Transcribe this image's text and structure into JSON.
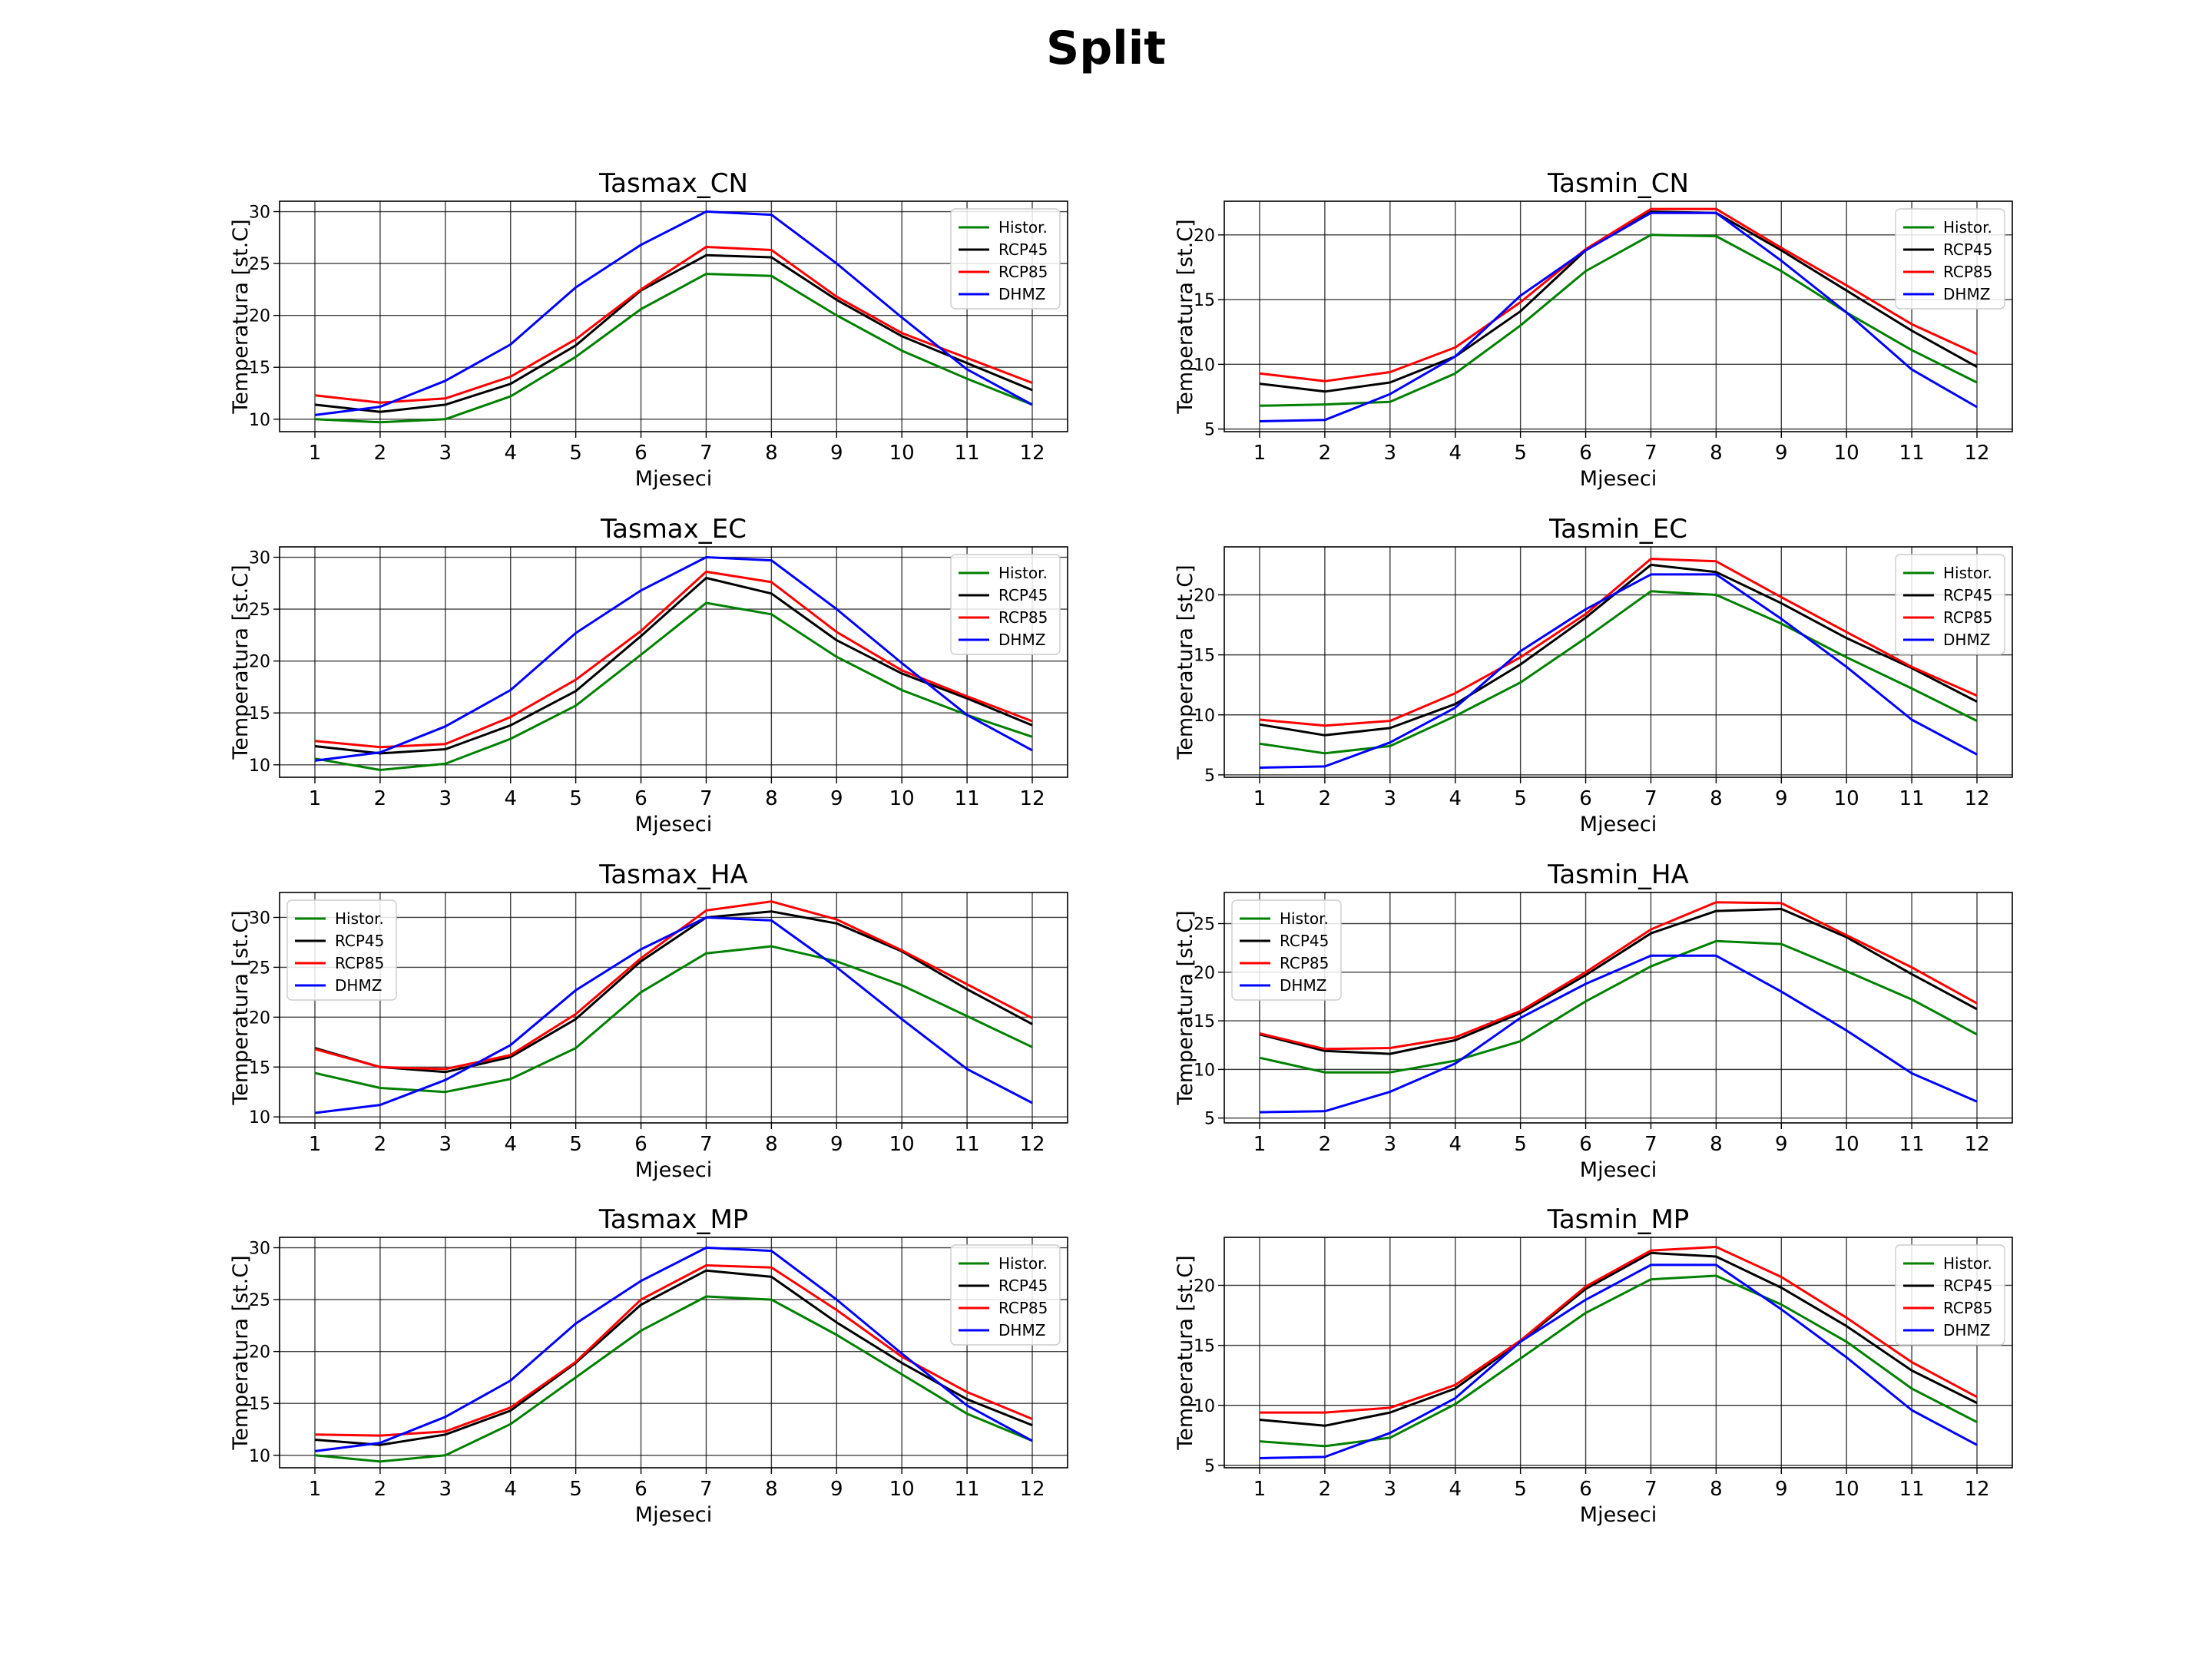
{
  "title": "Split",
  "colors": {
    "Histor.": "#008000",
    "RCP45": "#000000",
    "RCP85": "#ff0000",
    "DHMZ": "#0000ff"
  },
  "chart_data": [
    {
      "type": "line",
      "title": "Tasmax_CN",
      "xlabel": "Mjeseci",
      "ylabel": "Temperatura [st.C]",
      "x": [
        1,
        2,
        3,
        4,
        5,
        6,
        7,
        8,
        9,
        10,
        11,
        12
      ],
      "ylim": [
        8.8,
        31
      ],
      "yticks": [
        10,
        15,
        20,
        25,
        30
      ],
      "legend": "upper right",
      "grid": true,
      "series": [
        {
          "name": "Histor.",
          "values": [
            10.0,
            9.7,
            10.0,
            12.2,
            16.0,
            20.6,
            24.0,
            23.8,
            20.0,
            16.6,
            13.9,
            11.4
          ]
        },
        {
          "name": "RCP45",
          "values": [
            11.4,
            10.7,
            11.4,
            13.4,
            17.1,
            22.4,
            25.8,
            25.6,
            21.5,
            18.0,
            15.4,
            12.8
          ]
        },
        {
          "name": "RCP85",
          "values": [
            12.3,
            11.6,
            12.0,
            14.1,
            17.7,
            22.5,
            26.6,
            26.3,
            21.8,
            18.3,
            15.9,
            13.5
          ]
        },
        {
          "name": "DHMZ",
          "values": [
            10.4,
            11.2,
            13.7,
            17.2,
            22.7,
            26.8,
            30.0,
            29.7,
            25.0,
            19.8,
            14.8,
            11.4
          ]
        }
      ]
    },
    {
      "type": "line",
      "title": "Tasmin_CN",
      "xlabel": "Mjeseci",
      "ylabel": "Temperatura [st.C]",
      "x": [
        1,
        2,
        3,
        4,
        5,
        6,
        7,
        8,
        9,
        10,
        11,
        12
      ],
      "ylim": [
        4.8,
        22.6
      ],
      "yticks": [
        5,
        10,
        15,
        20
      ],
      "legend": "upper right",
      "grid": true,
      "series": [
        {
          "name": "Histor.",
          "values": [
            6.8,
            6.9,
            7.1,
            9.3,
            13.0,
            17.2,
            20.0,
            19.9,
            17.2,
            14.0,
            11.1,
            8.6
          ]
        },
        {
          "name": "RCP45",
          "values": [
            8.5,
            7.9,
            8.6,
            10.6,
            14.1,
            18.8,
            21.8,
            21.7,
            18.8,
            15.7,
            12.6,
            9.8
          ]
        },
        {
          "name": "RCP85",
          "values": [
            9.3,
            8.7,
            9.4,
            11.3,
            14.8,
            18.9,
            22.0,
            22.0,
            19.0,
            16.1,
            13.1,
            10.8
          ]
        },
        {
          "name": "DHMZ",
          "values": [
            5.6,
            5.7,
            7.7,
            10.6,
            15.3,
            18.8,
            21.7,
            21.7,
            18.0,
            14.0,
            9.6,
            6.7
          ]
        }
      ]
    },
    {
      "type": "line",
      "title": "Tasmax_EC",
      "xlabel": "Mjeseci",
      "ylabel": "Temperatura [st.C]",
      "x": [
        1,
        2,
        3,
        4,
        5,
        6,
        7,
        8,
        9,
        10,
        11,
        12
      ],
      "ylim": [
        8.8,
        31
      ],
      "yticks": [
        10,
        15,
        20,
        25,
        30
      ],
      "legend": "upper right",
      "grid": true,
      "series": [
        {
          "name": "Histor.",
          "values": [
            10.6,
            9.5,
            10.1,
            12.5,
            15.7,
            20.6,
            25.6,
            24.5,
            20.4,
            17.2,
            14.8,
            12.7
          ]
        },
        {
          "name": "RCP45",
          "values": [
            11.8,
            11.1,
            11.5,
            13.8,
            17.1,
            22.4,
            28.0,
            26.5,
            22.0,
            18.8,
            16.4,
            13.8
          ]
        },
        {
          "name": "RCP85",
          "values": [
            12.3,
            11.7,
            12.0,
            14.6,
            18.2,
            22.9,
            28.6,
            27.6,
            22.8,
            19.1,
            16.6,
            14.2
          ]
        },
        {
          "name": "DHMZ",
          "values": [
            10.4,
            11.2,
            13.7,
            17.2,
            22.7,
            26.8,
            30.0,
            29.7,
            25.0,
            19.8,
            14.8,
            11.4
          ]
        }
      ]
    },
    {
      "type": "line",
      "title": "Tasmin_EC",
      "xlabel": "Mjeseci",
      "ylabel": "Temperatura [st.C]",
      "x": [
        1,
        2,
        3,
        4,
        5,
        6,
        7,
        8,
        9,
        10,
        11,
        12
      ],
      "ylim": [
        4.8,
        24
      ],
      "yticks": [
        5,
        10,
        15,
        20
      ],
      "legend": "upper right",
      "grid": true,
      "series": [
        {
          "name": "Histor.",
          "values": [
            7.6,
            6.8,
            7.4,
            9.9,
            12.7,
            16.4,
            20.3,
            20.0,
            17.6,
            14.8,
            12.2,
            9.5
          ]
        },
        {
          "name": "RCP45",
          "values": [
            9.2,
            8.3,
            8.9,
            10.9,
            14.2,
            18.1,
            22.5,
            21.9,
            19.3,
            16.4,
            13.9,
            11.1
          ]
        },
        {
          "name": "RCP85",
          "values": [
            9.6,
            9.1,
            9.5,
            11.8,
            14.8,
            18.4,
            23.0,
            22.8,
            19.8,
            16.9,
            14.0,
            11.6
          ]
        },
        {
          "name": "DHMZ",
          "values": [
            5.6,
            5.7,
            7.7,
            10.6,
            15.3,
            18.8,
            21.7,
            21.7,
            18.0,
            14.0,
            9.6,
            6.7
          ]
        }
      ]
    },
    {
      "type": "line",
      "title": "Tasmax_HA",
      "xlabel": "Mjeseci",
      "ylabel": "Temperatura [st.C]",
      "x": [
        1,
        2,
        3,
        4,
        5,
        6,
        7,
        8,
        9,
        10,
        11,
        12
      ],
      "ylim": [
        9.4,
        32.5
      ],
      "yticks": [
        10,
        15,
        20,
        25,
        30
      ],
      "legend": "upper left",
      "grid": true,
      "series": [
        {
          "name": "Histor.",
          "values": [
            14.4,
            12.9,
            12.5,
            13.8,
            16.9,
            22.5,
            26.4,
            27.1,
            25.6,
            23.2,
            20.1,
            17.0
          ]
        },
        {
          "name": "RCP45",
          "values": [
            16.9,
            15.0,
            14.5,
            16.0,
            19.8,
            25.6,
            30.0,
            30.6,
            29.4,
            26.6,
            22.8,
            19.3
          ]
        },
        {
          "name": "RCP85",
          "values": [
            16.8,
            15.0,
            14.8,
            16.2,
            20.3,
            25.9,
            30.7,
            31.6,
            29.8,
            26.7,
            23.3,
            19.9
          ]
        },
        {
          "name": "DHMZ",
          "values": [
            10.4,
            11.2,
            13.7,
            17.2,
            22.7,
            26.8,
            30.0,
            29.7,
            25.0,
            19.8,
            14.8,
            11.4
          ]
        }
      ]
    },
    {
      "type": "line",
      "title": "Tasmin_HA",
      "xlabel": "Mjeseci",
      "ylabel": "Temperatura [st.C]",
      "x": [
        1,
        2,
        3,
        4,
        5,
        6,
        7,
        8,
        9,
        10,
        11,
        12
      ],
      "ylim": [
        4.5,
        28.2
      ],
      "yticks": [
        5,
        10,
        15,
        20,
        25
      ],
      "legend": "upper left",
      "grid": true,
      "series": [
        {
          "name": "Histor.",
          "values": [
            11.2,
            9.7,
            9.7,
            10.9,
            12.9,
            17.0,
            20.6,
            23.2,
            22.9,
            20.1,
            17.2,
            13.6
          ]
        },
        {
          "name": "RCP45",
          "values": [
            13.6,
            11.9,
            11.6,
            13.0,
            15.8,
            19.7,
            24.0,
            26.3,
            26.5,
            23.6,
            19.8,
            16.2
          ]
        },
        {
          "name": "RCP85",
          "values": [
            13.7,
            12.1,
            12.2,
            13.3,
            16.0,
            20.0,
            24.4,
            27.2,
            27.1,
            23.8,
            20.5,
            16.8
          ]
        },
        {
          "name": "DHMZ",
          "values": [
            5.6,
            5.7,
            7.7,
            10.6,
            15.3,
            18.8,
            21.7,
            21.7,
            18.0,
            14.0,
            9.6,
            6.7
          ]
        }
      ]
    },
    {
      "type": "line",
      "title": "Tasmax_MP",
      "xlabel": "Mjeseci",
      "ylabel": "Temperatura [st.C]",
      "x": [
        1,
        2,
        3,
        4,
        5,
        6,
        7,
        8,
        9,
        10,
        11,
        12
      ],
      "ylim": [
        8.8,
        31
      ],
      "yticks": [
        10,
        15,
        20,
        25,
        30
      ],
      "legend": "upper right",
      "grid": true,
      "series": [
        {
          "name": "Histor.",
          "values": [
            10.0,
            9.4,
            10.0,
            13.0,
            17.5,
            22.0,
            25.3,
            25.0,
            21.6,
            17.8,
            14.0,
            11.4
          ]
        },
        {
          "name": "RCP45",
          "values": [
            11.5,
            11.0,
            12.0,
            14.3,
            18.9,
            24.5,
            27.8,
            27.2,
            22.8,
            18.9,
            15.4,
            12.9
          ]
        },
        {
          "name": "RCP85",
          "values": [
            12.0,
            11.9,
            12.3,
            14.6,
            19.0,
            25.0,
            28.3,
            28.1,
            24.0,
            19.5,
            16.1,
            13.5
          ]
        },
        {
          "name": "DHMZ",
          "values": [
            10.4,
            11.2,
            13.7,
            17.2,
            22.7,
            26.8,
            30.0,
            29.7,
            25.0,
            19.8,
            14.8,
            11.4
          ]
        }
      ]
    },
    {
      "type": "line",
      "title": "Tasmin_MP",
      "xlabel": "Mjeseci",
      "ylabel": "Temperatura [st.C]",
      "x": [
        1,
        2,
        3,
        4,
        5,
        6,
        7,
        8,
        9,
        10,
        11,
        12
      ],
      "ylim": [
        4.8,
        24
      ],
      "yticks": [
        5,
        10,
        15,
        20
      ],
      "legend": "upper right",
      "grid": true,
      "series": [
        {
          "name": "Histor.",
          "values": [
            7.0,
            6.6,
            7.3,
            10.1,
            13.9,
            17.7,
            20.5,
            20.8,
            18.4,
            15.3,
            11.4,
            8.6
          ]
        },
        {
          "name": "RCP45",
          "values": [
            8.8,
            8.3,
            9.4,
            11.4,
            15.3,
            19.7,
            22.7,
            22.4,
            19.8,
            16.6,
            12.9,
            10.2
          ]
        },
        {
          "name": "RCP85",
          "values": [
            9.4,
            9.4,
            9.8,
            11.7,
            15.4,
            19.9,
            22.9,
            23.2,
            20.7,
            17.3,
            13.6,
            10.7
          ]
        },
        {
          "name": "DHMZ",
          "values": [
            5.6,
            5.7,
            7.7,
            10.6,
            15.3,
            18.8,
            21.7,
            21.7,
            18.0,
            14.0,
            9.6,
            6.7
          ]
        }
      ]
    }
  ]
}
